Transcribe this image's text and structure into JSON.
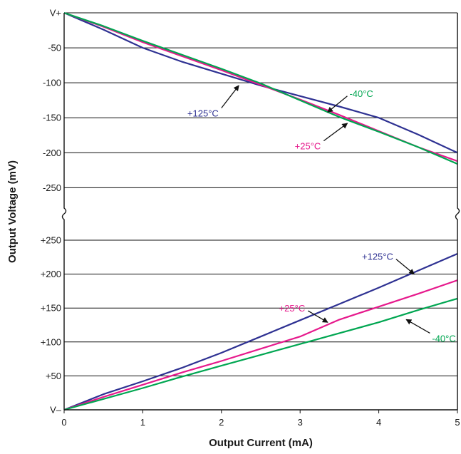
{
  "chart_data": [
    {
      "panel": "upper",
      "type": "line",
      "xlabel": "Output Current (mA)",
      "ylabel": "Output Voltage (mV)",
      "xlim": [
        0,
        5
      ],
      "ylim": [
        -270,
        0
      ],
      "y_reference": "V+",
      "ytick_values": [
        0,
        -50,
        -100,
        -150,
        -200,
        -250
      ],
      "ytick_labels": [
        "V+",
        "-50",
        "-100",
        "-150",
        "-200",
        "-250"
      ],
      "grid": true,
      "series": [
        {
          "name": "+125°C",
          "color": "#2e3192",
          "points": [
            [
              0,
              0
            ],
            [
              0.5,
              -24
            ],
            [
              1,
              -50
            ],
            [
              1.5,
              -70
            ],
            [
              2,
              -87
            ],
            [
              2.5,
              -104
            ],
            [
              3,
              -119
            ],
            [
              3.5,
              -134
            ],
            [
              4,
              -150
            ],
            [
              4.5,
              -174
            ],
            [
              5,
              -200
            ]
          ]
        },
        {
          "name": "+25°C",
          "color": "#e6198c",
          "points": [
            [
              0,
              0
            ],
            [
              0.5,
              -20
            ],
            [
              1,
              -42
            ],
            [
              1.5,
              -62
            ],
            [
              2,
              -82
            ],
            [
              2.5,
              -103
            ],
            [
              3,
              -124
            ],
            [
              3.5,
              -146
            ],
            [
              4,
              -169
            ],
            [
              4.5,
              -192
            ],
            [
              5,
              -212
            ]
          ]
        },
        {
          "name": "-40°C",
          "color": "#00a651",
          "points": [
            [
              0,
              0
            ],
            [
              0.5,
              -19
            ],
            [
              1,
              -40
            ],
            [
              1.5,
              -60
            ],
            [
              2,
              -80
            ],
            [
              2.5,
              -101
            ],
            [
              3,
              -125
            ],
            [
              3.5,
              -149
            ],
            [
              4,
              -170
            ],
            [
              4.5,
              -192
            ],
            [
              5,
              -216
            ]
          ]
        }
      ],
      "annotations": [
        {
          "text": "+125°C",
          "color": "#2e3192",
          "x_from": 2.0,
          "y_from": -136,
          "x_to": 2.22,
          "y_to": -104
        },
        {
          "text": "-40°C",
          "color": "#00a651",
          "x_from": 3.6,
          "y_from": -119,
          "x_to": 3.35,
          "y_to": -142
        },
        {
          "text": "+25°C",
          "color": "#e6198c",
          "x_from": 3.3,
          "y_from": -183,
          "x_to": 3.6,
          "y_to": -158
        }
      ]
    },
    {
      "panel": "lower",
      "type": "line",
      "xlabel": "Output Current (mA)",
      "ylabel": "Output Voltage (mV)",
      "xlim": [
        0,
        5
      ],
      "ylim": [
        0,
        250
      ],
      "y_reference": "V–",
      "xticks": [
        "0",
        "1",
        "2",
        "3",
        "4",
        "5"
      ],
      "ytick_values": [
        0,
        50,
        100,
        150,
        200,
        250
      ],
      "ytick_labels": [
        "V–",
        "+50",
        "+100",
        "+150",
        "+200",
        "+250"
      ],
      "grid": true,
      "series": [
        {
          "name": "+125°C",
          "color": "#2e3192",
          "points": [
            [
              0,
              0
            ],
            [
              0.5,
              23
            ],
            [
              1,
              42
            ],
            [
              1.5,
              62
            ],
            [
              2,
              84
            ],
            [
              2.5,
              108
            ],
            [
              3,
              132
            ],
            [
              3.5,
              156
            ],
            [
              4,
              180
            ],
            [
              4.5,
              205
            ],
            [
              5,
              230
            ]
          ]
        },
        {
          "name": "+25°C",
          "color": "#e6198c",
          "points": [
            [
              0,
              0
            ],
            [
              0.5,
              19
            ],
            [
              1,
              37
            ],
            [
              1.5,
              55
            ],
            [
              2,
              72
            ],
            [
              2.5,
              90
            ],
            [
              3,
              108
            ],
            [
              3.5,
              133
            ],
            [
              4,
              152
            ],
            [
              4.5,
              171
            ],
            [
              5,
              191
            ]
          ]
        },
        {
          "name": "-40°C",
          "color": "#00a651",
          "points": [
            [
              0,
              0
            ],
            [
              0.5,
              16
            ],
            [
              1,
              32
            ],
            [
              1.5,
              49
            ],
            [
              2,
              65
            ],
            [
              2.5,
              81
            ],
            [
              3,
              97
            ],
            [
              3.5,
              113
            ],
            [
              4,
              129
            ],
            [
              4.5,
              147
            ],
            [
              5,
              164
            ]
          ]
        }
      ],
      "annotations": [
        {
          "text": "+125°C",
          "color": "#2e3192",
          "x_from": 4.22,
          "y_from": 222,
          "x_to": 4.45,
          "y_to": 200
        },
        {
          "text": "+25°C",
          "color": "#e6198c",
          "x_from": 3.1,
          "y_from": 146,
          "x_to": 3.35,
          "y_to": 129
        },
        {
          "text": "-40°C",
          "color": "#00a651",
          "x_from": 4.65,
          "y_from": 113,
          "x_to": 4.35,
          "y_to": 133
        }
      ]
    }
  ]
}
